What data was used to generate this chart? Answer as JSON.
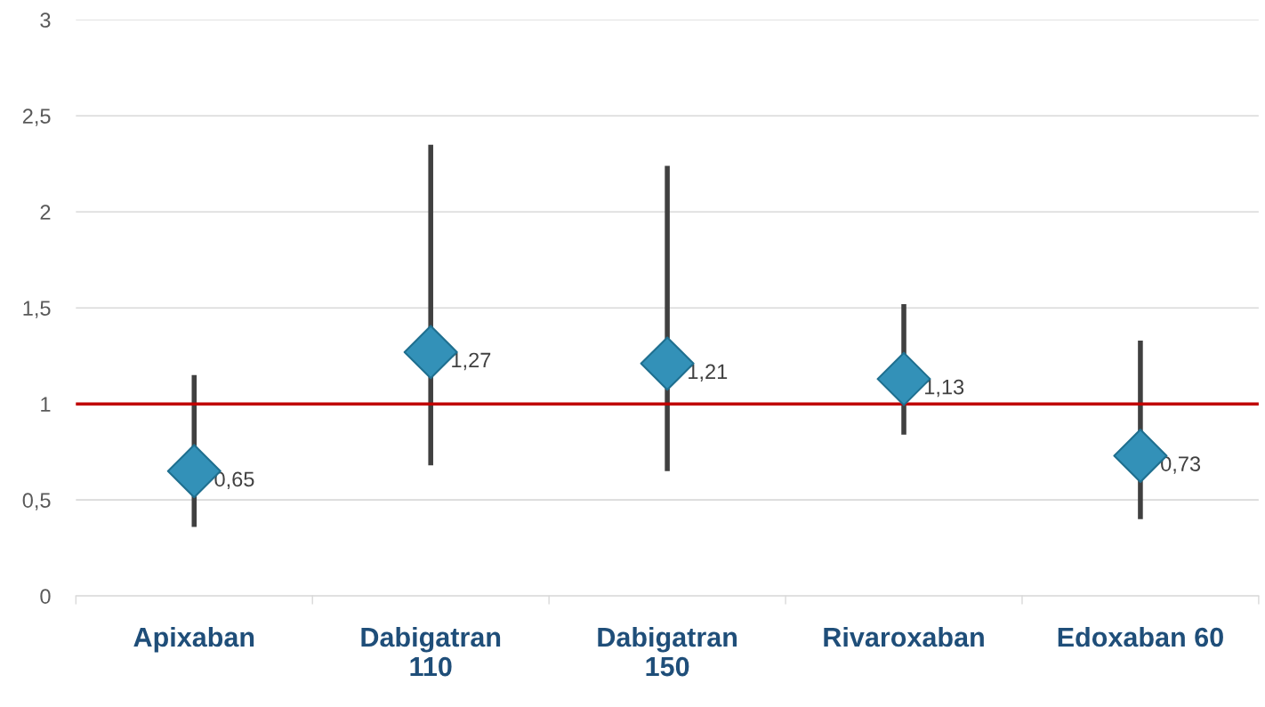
{
  "chart_data": {
    "type": "scatter",
    "categories": [
      "Apixaban",
      "Dabigatran\n110",
      "Dabigatran\n150",
      "Rivaroxaban",
      "Edoxaban 60"
    ],
    "values": [
      0.65,
      1.27,
      1.21,
      1.13,
      0.73
    ],
    "value_labels": [
      "0,65",
      "1,27",
      "1,21",
      "1,13",
      "0,73"
    ],
    "errors": [
      [
        0.36,
        1.15
      ],
      [
        0.68,
        2.35
      ],
      [
        0.65,
        2.24
      ],
      [
        0.84,
        1.52
      ],
      [
        0.4,
        1.33
      ]
    ],
    "color": "#3391b8",
    "marker": "diamond",
    "ylim": [
      0,
      3
    ],
    "yticks": [
      0,
      {
        "value": 0.5,
        "label": "0,5"
      },
      1,
      {
        "value": 1.5,
        "label": "1,5"
      },
      2,
      {
        "value": 2.5,
        "label": "2,5"
      },
      3
    ],
    "grid": "y",
    "ref_lines": [
      {
        "axis": "y",
        "value": 1,
        "color": "#c00000"
      }
    ]
  }
}
